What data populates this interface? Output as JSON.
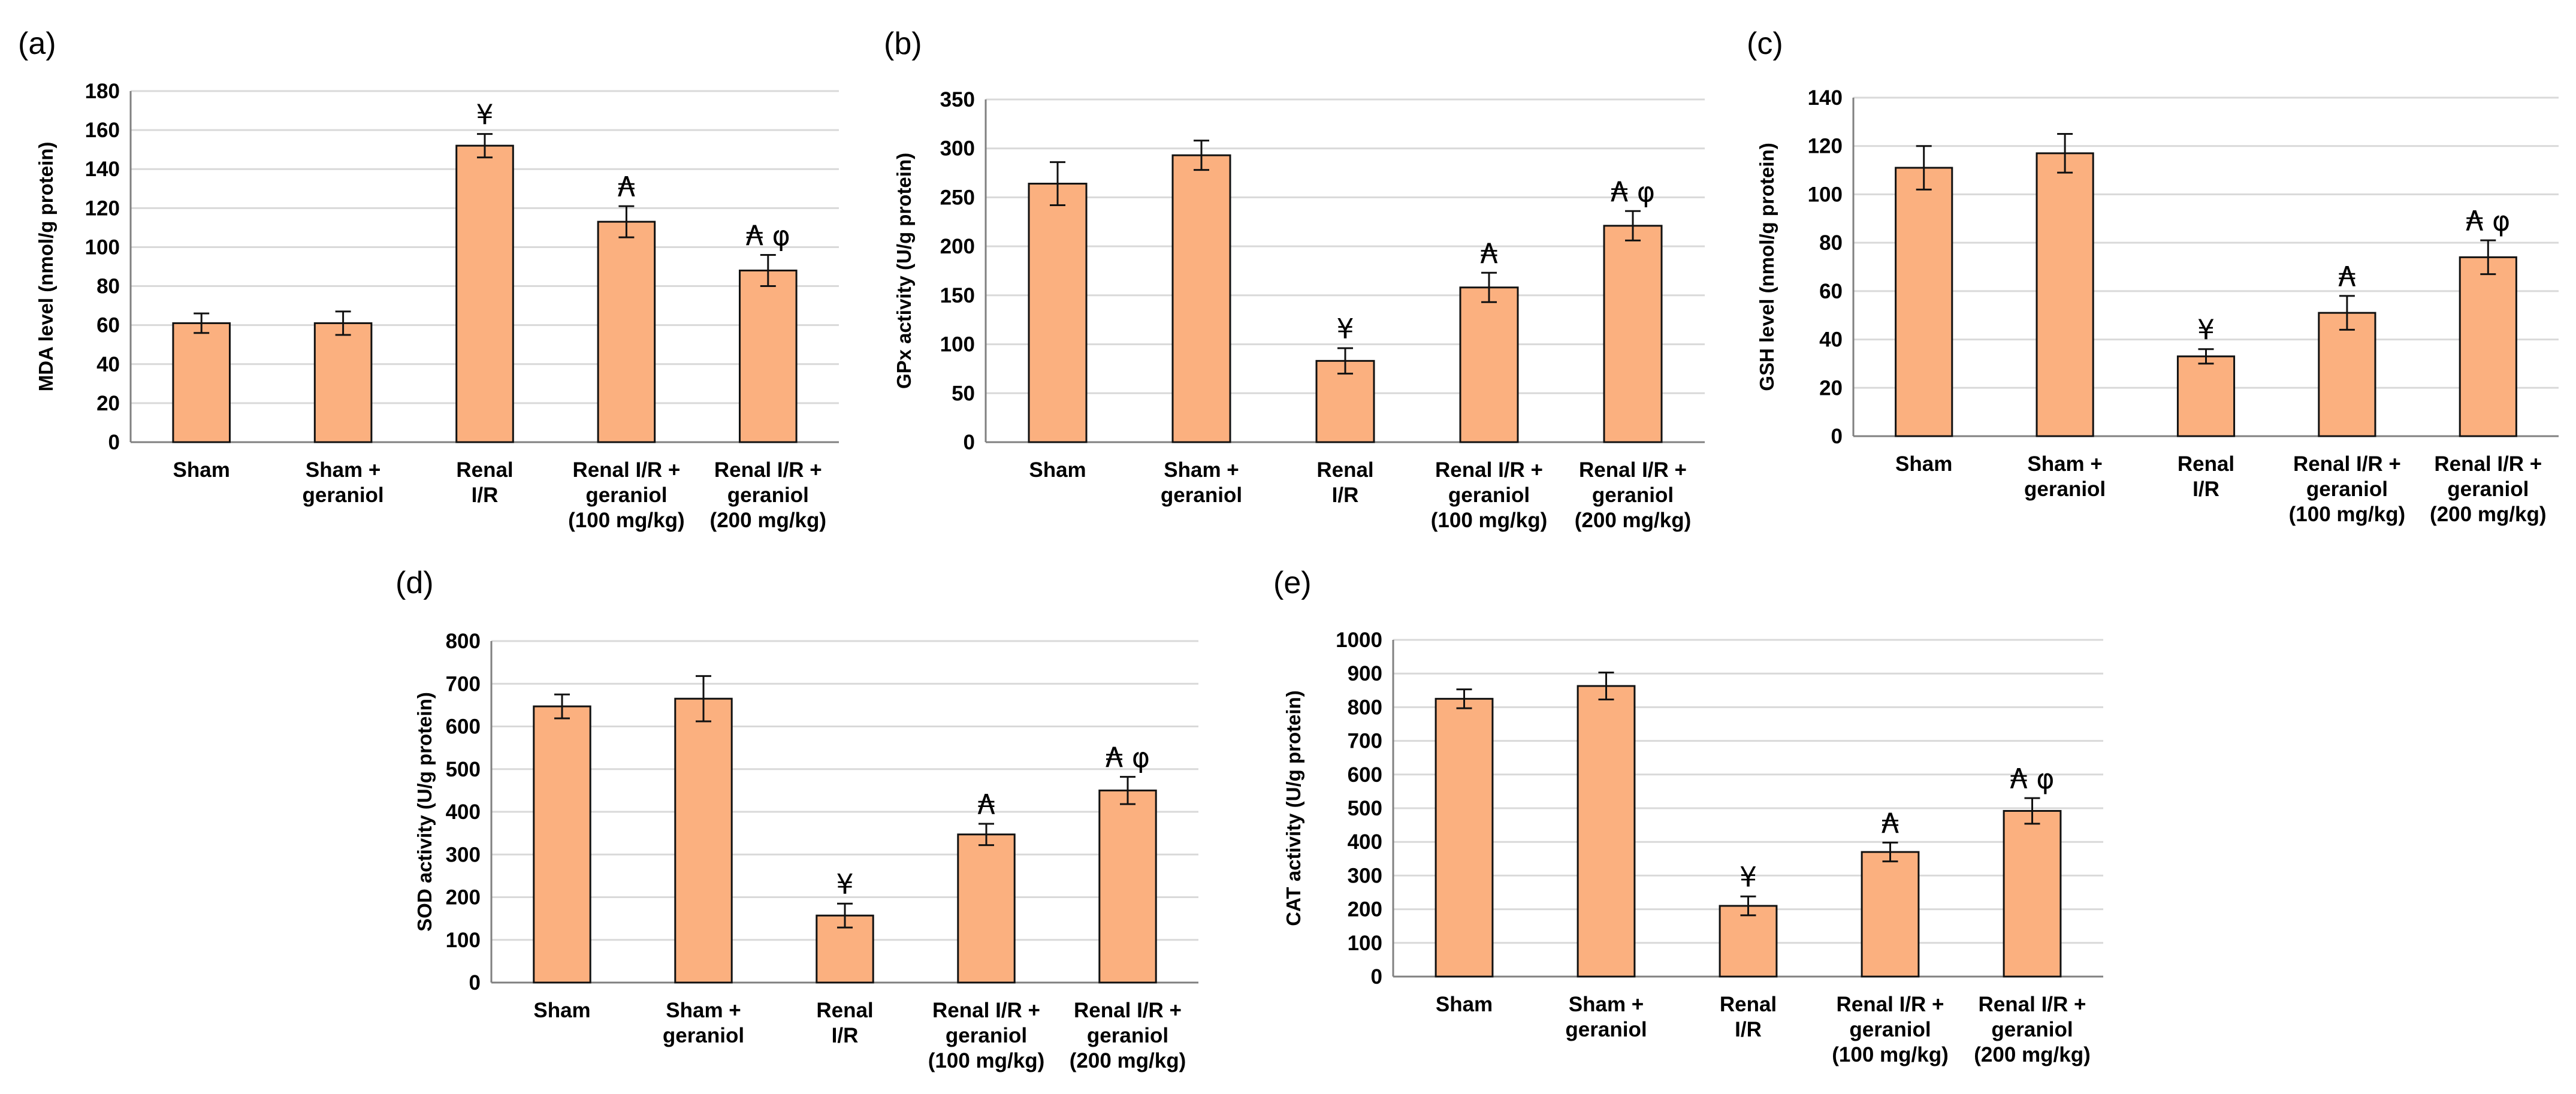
{
  "chart_data": [
    {
      "panel_label": "(a)",
      "type": "bar",
      "ylabel": "MDA level (nmol/g protein)",
      "ylim": [
        0,
        180
      ],
      "ticks": [
        0,
        20,
        40,
        60,
        80,
        100,
        120,
        140,
        160,
        180
      ],
      "grid": true,
      "categories": [
        [
          "Sham"
        ],
        [
          "Sham +",
          "geraniol"
        ],
        [
          "Renal",
          "I/R"
        ],
        [
          "Renal I/R +",
          "geraniol",
          "(100 mg/kg)"
        ],
        [
          "Renal I/R +",
          "geraniol",
          "(200 mg/kg)"
        ]
      ],
      "values": [
        61,
        61,
        152,
        113,
        88
      ],
      "errors": [
        5,
        6,
        6,
        8,
        8
      ],
      "annotations": [
        "",
        "",
        "¥",
        "₳",
        "₳ φ"
      ]
    },
    {
      "panel_label": "(b)",
      "type": "bar",
      "ylabel": "GPx activity (U/g protein)",
      "ylim": [
        0,
        350
      ],
      "ticks": [
        0,
        50,
        100,
        150,
        200,
        250,
        300,
        350
      ],
      "grid": true,
      "categories": [
        [
          "Sham"
        ],
        [
          "Sham +",
          "geraniol"
        ],
        [
          "Renal",
          "I/R"
        ],
        [
          "Renal I/R +",
          "geraniol",
          "(100 mg/kg)"
        ],
        [
          "Renal I/R +",
          "geraniol",
          "(200 mg/kg)"
        ]
      ],
      "values": [
        264,
        293,
        83,
        158,
        221
      ],
      "errors": [
        22,
        15,
        13,
        15,
        15
      ],
      "annotations": [
        "",
        "",
        "¥",
        "₳",
        "₳ φ"
      ]
    },
    {
      "panel_label": "(c)",
      "type": "bar",
      "ylabel": "GSH level (nmol/g protein)",
      "ylim": [
        0,
        140
      ],
      "ticks": [
        0,
        20,
        40,
        60,
        80,
        100,
        120,
        140
      ],
      "grid": true,
      "categories": [
        [
          "Sham"
        ],
        [
          "Sham +",
          "geraniol"
        ],
        [
          "Renal",
          "I/R"
        ],
        [
          "Renal I/R +",
          "geraniol",
          "(100 mg/kg)"
        ],
        [
          "Renal I/R +",
          "geraniol",
          "(200 mg/kg)"
        ]
      ],
      "values": [
        111,
        117,
        33,
        51,
        74
      ],
      "errors": [
        9,
        8,
        3,
        7,
        7
      ],
      "annotations": [
        "",
        "",
        "¥",
        "₳",
        "₳ φ"
      ]
    },
    {
      "panel_label": "(d)",
      "type": "bar",
      "ylabel": "SOD activity (U/g protein)",
      "ylim": [
        0,
        800
      ],
      "ticks": [
        0,
        100,
        200,
        300,
        400,
        500,
        600,
        700,
        800
      ],
      "grid": true,
      "categories": [
        [
          "Sham"
        ],
        [
          "Sham +",
          "geraniol"
        ],
        [
          "Renal",
          "I/R"
        ],
        [
          "Renal I/R +",
          "geraniol",
          "(100 mg/kg)"
        ],
        [
          "Renal I/R +",
          "geraniol",
          "(200 mg/kg)"
        ]
      ],
      "values": [
        647,
        665,
        157,
        347,
        450
      ],
      "errors": [
        28,
        53,
        28,
        25,
        32
      ],
      "annotations": [
        "",
        "",
        "¥",
        "₳",
        "₳ φ"
      ]
    },
    {
      "panel_label": "(e)",
      "type": "bar",
      "ylabel": "CAT activity (U/g protein)",
      "ylim": [
        0,
        1000
      ],
      "ticks": [
        0,
        100,
        200,
        300,
        400,
        500,
        600,
        700,
        800,
        900,
        1000
      ],
      "grid": true,
      "categories": [
        [
          "Sham"
        ],
        [
          "Sham +",
          "geraniol"
        ],
        [
          "Renal",
          "I/R"
        ],
        [
          "Renal I/R +",
          "geraniol",
          "(100 mg/kg)"
        ],
        [
          "Renal I/R +",
          "geraniol",
          "(200 mg/kg)"
        ]
      ],
      "values": [
        825,
        863,
        210,
        370,
        492
      ],
      "errors": [
        28,
        40,
        28,
        28,
        38
      ],
      "annotations": [
        "",
        "",
        "¥",
        "₳",
        "₳ φ"
      ]
    }
  ],
  "colors": {
    "bar_fill": "#fbb07f",
    "bar_stroke": "#111111",
    "grid": "#d9d9d9",
    "axis": "#808080"
  }
}
